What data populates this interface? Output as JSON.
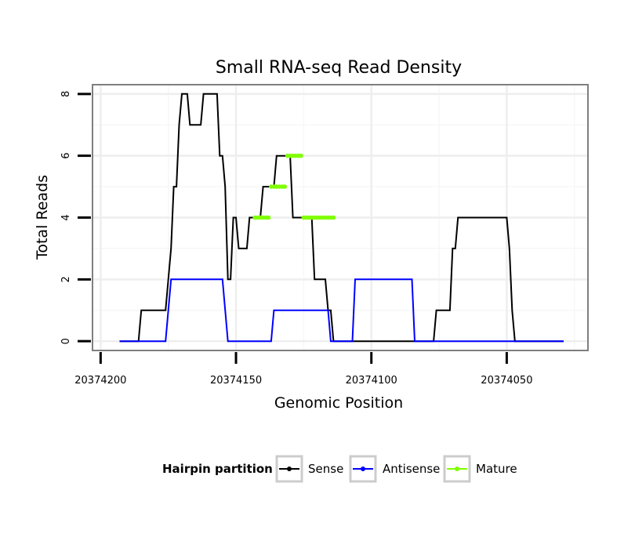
{
  "chart_data": {
    "type": "line",
    "title": "Small RNA-seq Read Density",
    "xlabel": "Genomic Position",
    "ylabel": "Total Reads",
    "x_reversed": true,
    "xlim": [
      20374203,
      20374020
    ],
    "ylim": [
      -0.3,
      8.3
    ],
    "x_ticks": [
      20374200,
      20374150,
      20374100,
      20374050
    ],
    "x_tick_labels": [
      "20374200",
      "20374150",
      "20374100",
      "20374050"
    ],
    "y_ticks": [
      0,
      2,
      4,
      6,
      8
    ],
    "y_tick_labels": [
      "0",
      "2",
      "4",
      "6",
      "8"
    ],
    "grid": true,
    "legend": {
      "title": "Hairpin partition",
      "position": "bottom",
      "items": [
        {
          "label": "Sense",
          "color": "#000000"
        },
        {
          "label": "Antisense",
          "color": "#0000ff"
        },
        {
          "label": "Mature",
          "color": "#80ff00"
        }
      ]
    },
    "series": [
      {
        "name": "Sense",
        "color": "#000000",
        "points": [
          [
            20374193,
            0
          ],
          [
            20374186,
            0
          ],
          [
            20374185,
            1
          ],
          [
            20374176,
            1
          ],
          [
            20374175,
            2
          ],
          [
            20374174,
            3
          ],
          [
            20374173,
            5
          ],
          [
            20374172,
            5
          ],
          [
            20374171,
            7
          ],
          [
            20374170,
            8
          ],
          [
            20374168,
            8
          ],
          [
            20374167,
            7
          ],
          [
            20374163,
            7
          ],
          [
            20374162,
            8
          ],
          [
            20374157,
            8
          ],
          [
            20374156,
            6
          ],
          [
            20374155,
            6
          ],
          [
            20374154,
            5
          ],
          [
            20374153,
            2
          ],
          [
            20374152,
            2
          ],
          [
            20374151,
            4
          ],
          [
            20374150,
            4
          ],
          [
            20374149,
            3
          ],
          [
            20374146,
            3
          ],
          [
            20374145,
            4
          ],
          [
            20374141,
            4
          ],
          [
            20374140,
            5
          ],
          [
            20374136,
            5
          ],
          [
            20374135,
            6
          ],
          [
            20374130,
            6
          ],
          [
            20374129,
            4
          ],
          [
            20374122,
            4
          ],
          [
            20374121,
            2
          ],
          [
            20374117,
            2
          ],
          [
            20374116,
            1
          ],
          [
            20374115,
            1
          ],
          [
            20374114,
            0
          ],
          [
            20374077,
            0
          ],
          [
            20374076,
            1
          ],
          [
            20374071,
            1
          ],
          [
            20374070,
            3
          ],
          [
            20374069,
            3
          ],
          [
            20374068,
            4
          ],
          [
            20374050,
            4
          ],
          [
            20374049,
            3
          ],
          [
            20374048,
            1
          ],
          [
            20374047,
            0
          ],
          [
            20374029,
            0
          ]
        ]
      },
      {
        "name": "Antisense",
        "color": "#0000ff",
        "points": [
          [
            20374193,
            0
          ],
          [
            20374176,
            0
          ],
          [
            20374174,
            2
          ],
          [
            20374155,
            2
          ],
          [
            20374153,
            0
          ],
          [
            20374137,
            0
          ],
          [
            20374136,
            1
          ],
          [
            20374116,
            1
          ],
          [
            20374115,
            0
          ],
          [
            20374107,
            0
          ],
          [
            20374106,
            2
          ],
          [
            20374085,
            2
          ],
          [
            20374084,
            0
          ],
          [
            20374029,
            0
          ]
        ]
      },
      {
        "name": "Mature",
        "color": "#80ff00",
        "points": [
          [
            20374143,
            4
          ],
          [
            20374138,
            4
          ],
          [
            20374137,
            5
          ],
          [
            20374132,
            5
          ],
          [
            20374131,
            6
          ],
          [
            20374126,
            6
          ],
          [
            20374125,
            4
          ],
          [
            20374114,
            4
          ]
        ]
      }
    ]
  }
}
